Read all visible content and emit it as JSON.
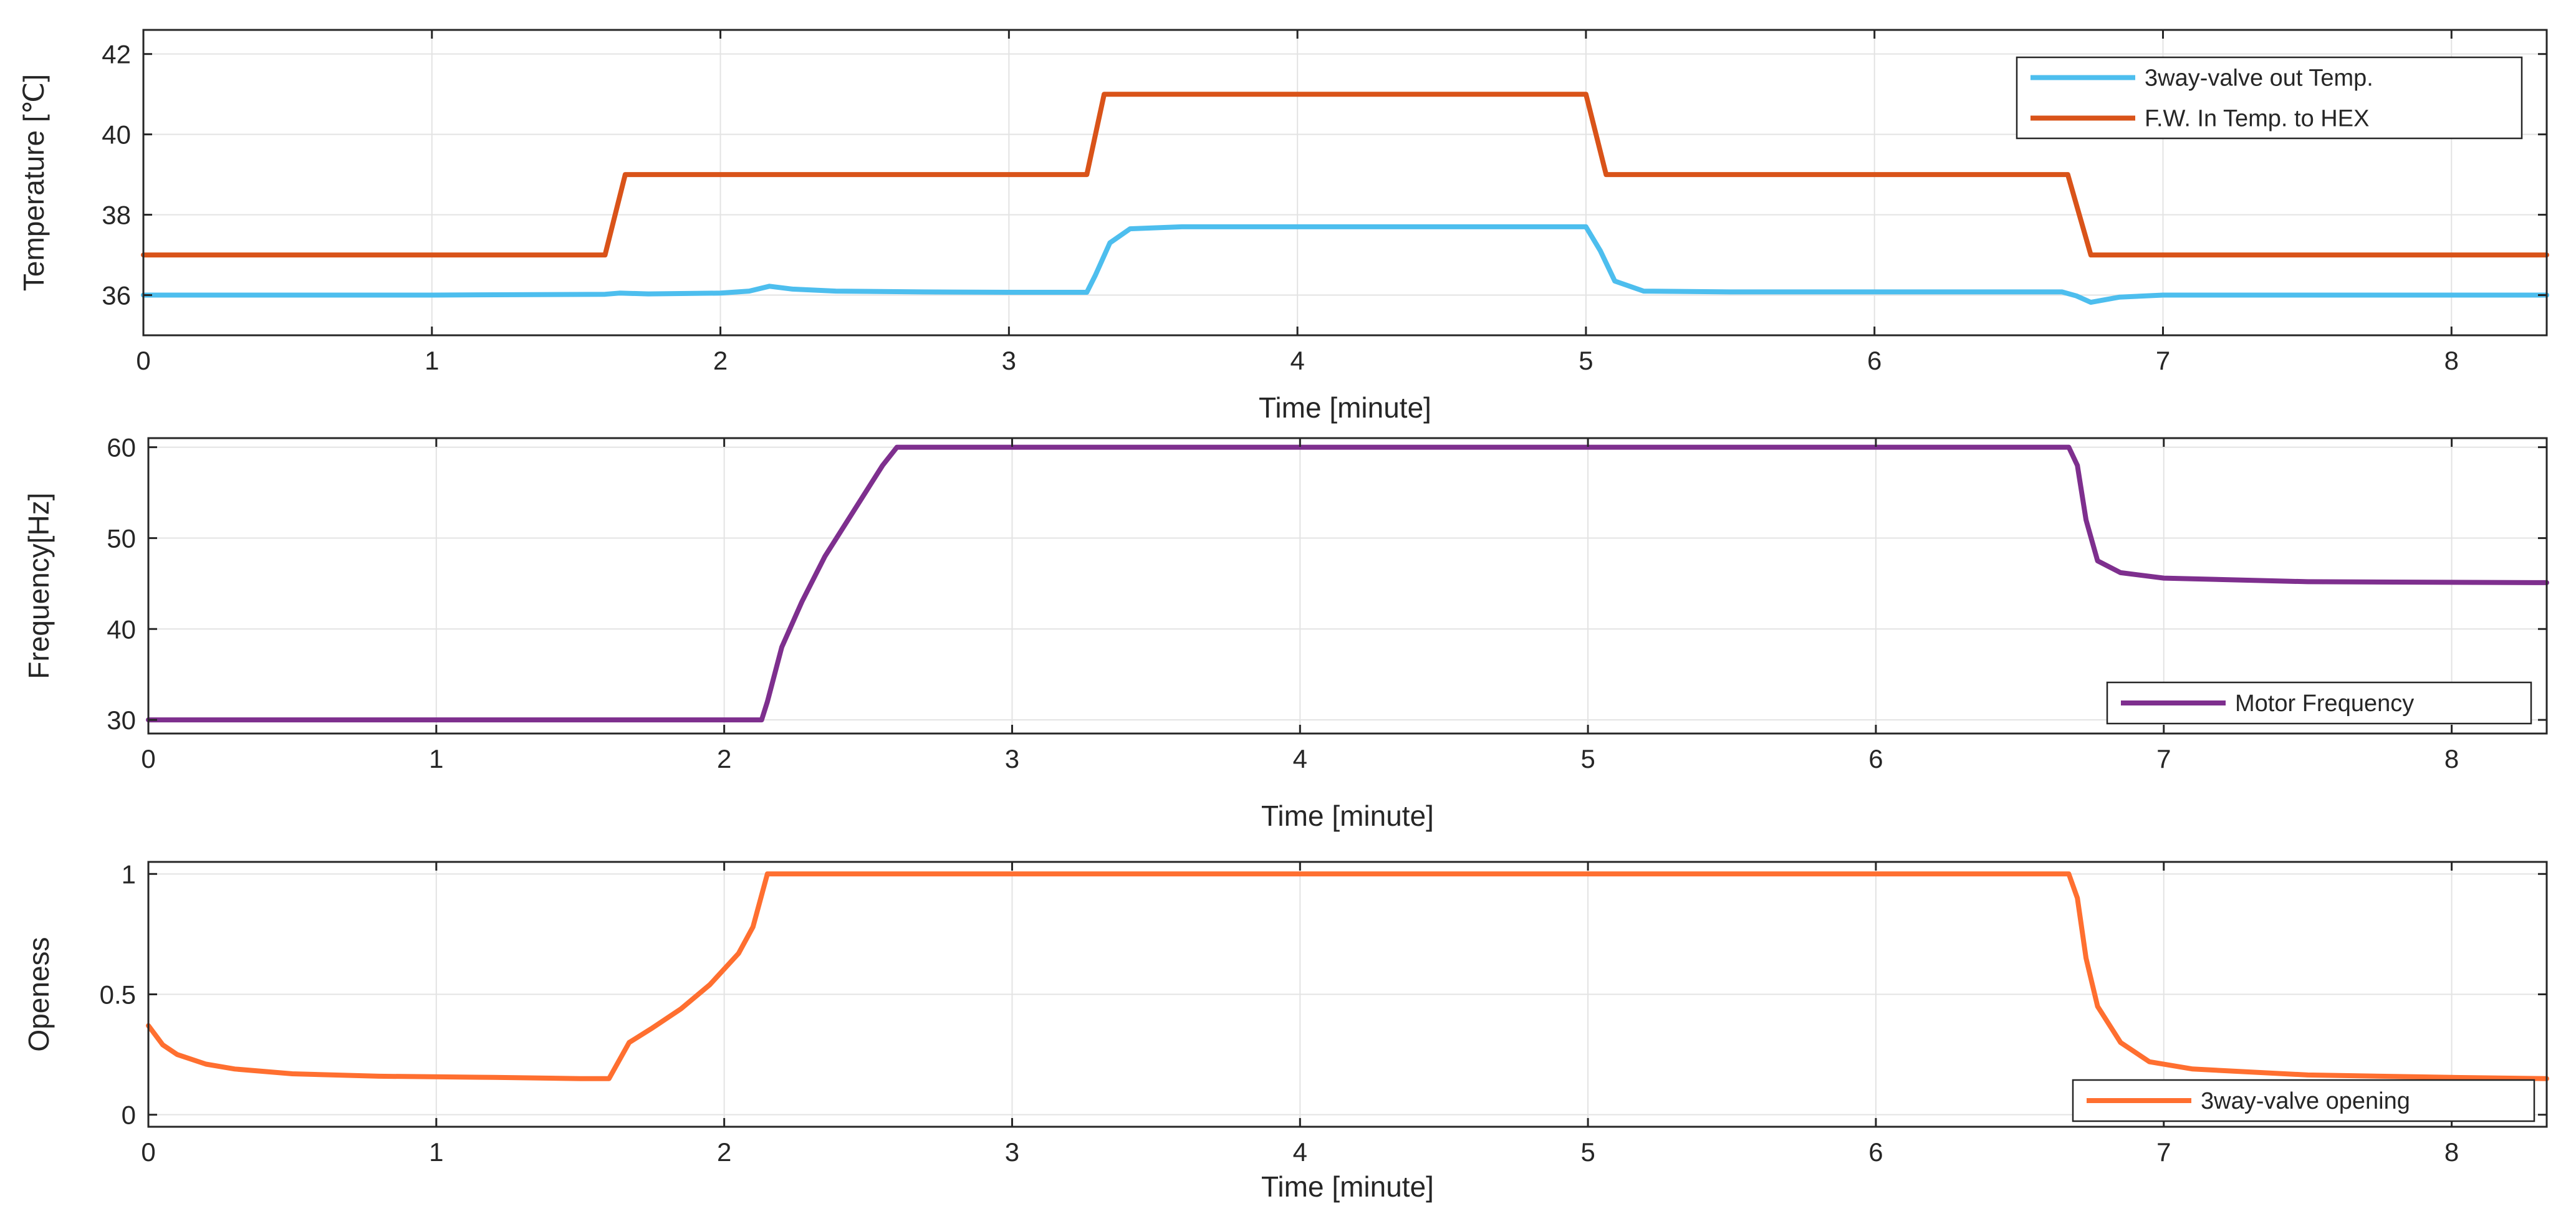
{
  "chart_data": [
    {
      "type": "line",
      "xlabel": "Time [minute]",
      "ylabel": "Temperature [℃]",
      "xlim": [
        0,
        8.33
      ],
      "ylim": [
        35,
        42.6
      ],
      "xticks": [
        0,
        1,
        2,
        3,
        4,
        5,
        6,
        7,
        8
      ],
      "yticks": [
        36,
        38,
        40,
        42
      ],
      "grid": true,
      "legend": "top-right",
      "series": [
        {
          "name": "3way-valve out Temp.",
          "color": "#4DBEEE",
          "points": [
            [
              0,
              36.0
            ],
            [
              1.0,
              36.0
            ],
            [
              1.6,
              36.02
            ],
            [
              1.65,
              36.05
            ],
            [
              1.75,
              36.03
            ],
            [
              2.0,
              36.05
            ],
            [
              2.1,
              36.1
            ],
            [
              2.17,
              36.22
            ],
            [
              2.25,
              36.15
            ],
            [
              2.4,
              36.1
            ],
            [
              2.7,
              36.08
            ],
            [
              3.0,
              36.07
            ],
            [
              3.27,
              36.07
            ],
            [
              3.3,
              36.5
            ],
            [
              3.35,
              37.3
            ],
            [
              3.42,
              37.65
            ],
            [
              3.6,
              37.7
            ],
            [
              4.0,
              37.7
            ],
            [
              4.5,
              37.7
            ],
            [
              5.0,
              37.7
            ],
            [
              5.05,
              37.1
            ],
            [
              5.1,
              36.35
            ],
            [
              5.2,
              36.1
            ],
            [
              5.5,
              36.08
            ],
            [
              6.0,
              36.08
            ],
            [
              6.65,
              36.08
            ],
            [
              6.7,
              35.98
            ],
            [
              6.75,
              35.82
            ],
            [
              6.85,
              35.95
            ],
            [
              7.0,
              36.0
            ],
            [
              8.33,
              36.0
            ]
          ]
        },
        {
          "name": "F.W. In Temp. to HEX",
          "color": "#D95319",
          "points": [
            [
              0,
              37.0
            ],
            [
              1.6,
              37.0
            ],
            [
              1.67,
              39.0
            ],
            [
              3.27,
              39.0
            ],
            [
              3.33,
              41.0
            ],
            [
              5.0,
              41.0
            ],
            [
              5.07,
              39.0
            ],
            [
              6.67,
              39.0
            ],
            [
              6.75,
              37.0
            ],
            [
              8.33,
              37.0
            ]
          ]
        }
      ]
    },
    {
      "type": "line",
      "xlabel": "Time [minute]",
      "ylabel": "Frequency[Hz]",
      "xlim": [
        0,
        8.33
      ],
      "ylim": [
        28.5,
        61
      ],
      "xticks": [
        0,
        1,
        2,
        3,
        4,
        5,
        6,
        7,
        8
      ],
      "yticks": [
        30,
        40,
        50,
        60
      ],
      "grid": true,
      "legend": "bottom-right",
      "series": [
        {
          "name": "Motor Frequency",
          "color": "#7E2F8E",
          "points": [
            [
              0,
              30.0
            ],
            [
              2.13,
              30.0
            ],
            [
              2.15,
              32.0
            ],
            [
              2.2,
              38.0
            ],
            [
              2.27,
              43.0
            ],
            [
              2.35,
              48.0
            ],
            [
              2.45,
              53.0
            ],
            [
              2.55,
              58.0
            ],
            [
              2.6,
              60.0
            ],
            [
              4.0,
              60.0
            ],
            [
              6.67,
              60.0
            ],
            [
              6.7,
              58.0
            ],
            [
              6.73,
              52.0
            ],
            [
              6.77,
              47.5
            ],
            [
              6.85,
              46.2
            ],
            [
              7.0,
              45.6
            ],
            [
              7.5,
              45.2
            ],
            [
              8.33,
              45.1
            ]
          ]
        }
      ]
    },
    {
      "type": "line",
      "xlabel": "Time [minute]",
      "ylabel": "Openess",
      "xlim": [
        0,
        8.33
      ],
      "ylim": [
        -0.05,
        1.05
      ],
      "xticks": [
        0,
        1,
        2,
        3,
        4,
        5,
        6,
        7,
        8
      ],
      "yticks": [
        0,
        0.5,
        1
      ],
      "grid": true,
      "legend": "bottom-right",
      "series": [
        {
          "name": "3way-valve opening",
          "color": "#FF6F30",
          "points": [
            [
              0,
              0.37
            ],
            [
              0.05,
              0.29
            ],
            [
              0.1,
              0.25
            ],
            [
              0.2,
              0.21
            ],
            [
              0.3,
              0.19
            ],
            [
              0.5,
              0.17
            ],
            [
              0.8,
              0.16
            ],
            [
              1.2,
              0.155
            ],
            [
              1.5,
              0.15
            ],
            [
              1.6,
              0.15
            ],
            [
              1.67,
              0.3
            ],
            [
              1.75,
              0.36
            ],
            [
              1.85,
              0.44
            ],
            [
              1.95,
              0.54
            ],
            [
              2.05,
              0.67
            ],
            [
              2.1,
              0.78
            ],
            [
              2.15,
              1.0
            ],
            [
              4.0,
              1.0
            ],
            [
              6.67,
              1.0
            ],
            [
              6.7,
              0.9
            ],
            [
              6.73,
              0.65
            ],
            [
              6.77,
              0.45
            ],
            [
              6.85,
              0.3
            ],
            [
              6.95,
              0.22
            ],
            [
              7.1,
              0.19
            ],
            [
              7.5,
              0.165
            ],
            [
              8.0,
              0.155
            ],
            [
              8.33,
              0.15
            ]
          ]
        }
      ]
    }
  ]
}
